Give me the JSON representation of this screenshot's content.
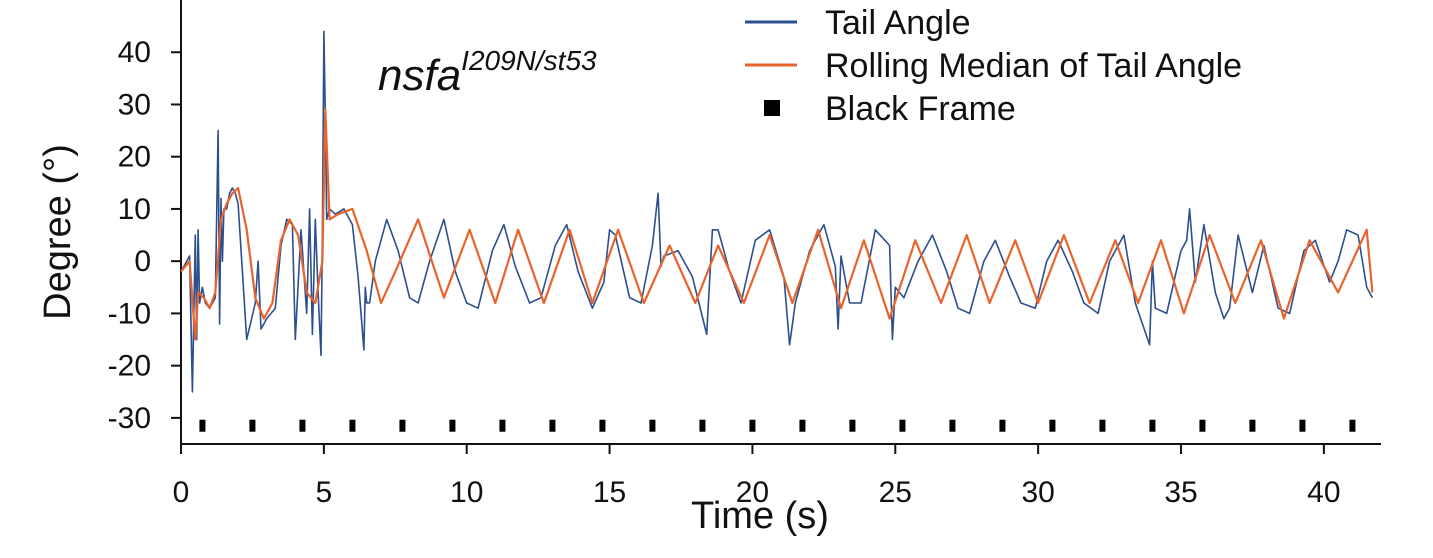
{
  "chart_data": {
    "type": "line",
    "title": "",
    "xlabel": "Time (s)",
    "ylabel": "Degree (°)",
    "xlim": [
      0,
      42
    ],
    "ylim": [
      -35,
      50
    ],
    "xticks": [
      0,
      5,
      10,
      15,
      20,
      25,
      30,
      35,
      40
    ],
    "yticks": [
      -30,
      -20,
      -10,
      0,
      10,
      20,
      30,
      40
    ],
    "grid": false,
    "legend_position": "top-right",
    "annotation": {
      "base": "nsfa",
      "superscript": "I209N/st53"
    },
    "colors": {
      "tail_angle": "#2c4f8f",
      "rolling_median": "#e8642c",
      "black_frame": "#000000"
    },
    "series": [
      {
        "name": "Tail Angle",
        "x": [
          0,
          0.2,
          0.3,
          0.4,
          0.5,
          0.55,
          0.6,
          0.65,
          0.75,
          0.85,
          1.0,
          1.2,
          1.3,
          1.35,
          1.4,
          1.45,
          1.5,
          1.6,
          1.7,
          1.8,
          1.9,
          2.0,
          2.3,
          2.6,
          2.7,
          2.8,
          3.0,
          3.3,
          3.5,
          3.7,
          3.9,
          4.0,
          4.2,
          4.4,
          4.5,
          4.6,
          4.7,
          4.8,
          4.9,
          4.95,
          5.0,
          5.05,
          5.1,
          5.2,
          5.4,
          5.7,
          6.0,
          6.2,
          6.4,
          6.45,
          6.5,
          6.6,
          6.8,
          7.2,
          7.6,
          8.0,
          8.3,
          8.7,
          9.2,
          9.6,
          10.0,
          10.4,
          10.9,
          11.3,
          11.7,
          12.2,
          12.6,
          13.1,
          13.5,
          13.9,
          14.4,
          14.8,
          15.0,
          15.2,
          15.7,
          16.1,
          16.5,
          16.7,
          16.8,
          16.9,
          17.4,
          17.9,
          18.4,
          18.6,
          18.8,
          19.2,
          19.6,
          20.1,
          20.6,
          21.1,
          21.3,
          21.5,
          22.0,
          22.5,
          22.9,
          23.0,
          23.1,
          23.4,
          23.8,
          24.3,
          24.8,
          24.9,
          25.0,
          25.3,
          25.8,
          26.3,
          26.8,
          27.2,
          27.6,
          28.1,
          28.5,
          29.0,
          29.4,
          29.9,
          30.3,
          30.7,
          31.2,
          31.6,
          32.1,
          32.5,
          33.0,
          33.4,
          33.9,
          34.0,
          34.1,
          34.5,
          35.0,
          35.2,
          35.3,
          35.5,
          35.8,
          36.2,
          36.5,
          36.7,
          37.0,
          37.5,
          37.9,
          38.4,
          38.8,
          39.3,
          39.7,
          40.2,
          40.5,
          40.8,
          41.2,
          41.5,
          41.7
        ],
        "y": [
          -2,
          0,
          1,
          -25,
          5,
          -15,
          6,
          -8,
          -5,
          -8,
          -9,
          -7,
          25,
          -12,
          12,
          0,
          10,
          10,
          13,
          14,
          13,
          11,
          -15,
          -8,
          0,
          -13,
          -11,
          -9,
          3,
          8,
          7,
          -15,
          6,
          -10,
          10,
          -14,
          8,
          -6,
          -18,
          5,
          44,
          28,
          8,
          10,
          9,
          10,
          7,
          -3,
          -17,
          -5,
          -8,
          -8,
          0,
          8,
          2,
          -7,
          -8,
          0,
          8,
          -2,
          -8,
          -9,
          2,
          7,
          -1,
          -8,
          -7,
          3,
          7,
          -2,
          -9,
          -4,
          6,
          5,
          -7,
          -8,
          3,
          13,
          -1,
          1,
          2,
          -3,
          -14,
          6,
          6,
          -2,
          -8,
          4,
          6,
          -3,
          -16,
          -8,
          2,
          7,
          -1,
          -13,
          1,
          -8,
          -8,
          6,
          3,
          -15,
          -5,
          -7,
          0,
          5,
          -2,
          -9,
          -10,
          0,
          4,
          -3,
          -8,
          -9,
          0,
          4,
          -2,
          -8,
          -10,
          0,
          5,
          -8,
          -16,
          0,
          -9,
          -10,
          2,
          4,
          10,
          -4,
          7,
          -6,
          -11,
          -9,
          5,
          -6,
          3,
          -9,
          -10,
          2,
          4,
          -4,
          0,
          6,
          5,
          -5,
          -7
        ],
        "color": "#2c4f8f"
      },
      {
        "name": "Rolling Median of Tail Angle",
        "x": [
          0,
          0.3,
          0.5,
          0.6,
          0.8,
          1.0,
          1.2,
          1.4,
          1.6,
          1.8,
          2.0,
          2.3,
          2.6,
          2.9,
          3.2,
          3.5,
          3.8,
          4.1,
          4.4,
          4.7,
          4.95,
          5.05,
          5.2,
          5.5,
          6.0,
          6.5,
          7.0,
          7.5,
          8.3,
          9.2,
          10.1,
          11.0,
          11.8,
          12.7,
          13.6,
          14.4,
          15.3,
          16.2,
          17.1,
          18.0,
          18.8,
          19.7,
          20.6,
          21.4,
          22.3,
          23.1,
          23.9,
          24.8,
          25.7,
          26.6,
          27.5,
          28.3,
          29.2,
          30.0,
          30.9,
          31.8,
          32.7,
          33.5,
          34.3,
          35.1,
          36.0,
          36.9,
          37.8,
          38.6,
          39.5,
          40.5,
          41.5,
          41.7
        ],
        "y": [
          -2,
          0,
          -15,
          -6,
          -7,
          -9,
          -6,
          8,
          11,
          13,
          14,
          6,
          -7,
          -11,
          -8,
          4,
          8,
          5,
          -6,
          -8,
          0,
          29,
          8,
          9,
          10,
          2,
          -8,
          -2,
          8,
          -7,
          6,
          -8,
          6,
          -8,
          6,
          -8,
          6,
          -8,
          3,
          -8,
          3,
          -8,
          5,
          -8,
          6,
          -9,
          4,
          -11,
          4,
          -8,
          5,
          -8,
          4,
          -8,
          5,
          -8,
          4,
          -8,
          4,
          -10,
          5,
          -8,
          4,
          -11,
          4,
          -6,
          6,
          -6
        ],
        "color": "#e8642c"
      },
      {
        "name": "Black Frame",
        "type": "scatter",
        "marker": "square",
        "x": [
          0.75,
          2.5,
          4.25,
          6.0,
          7.75,
          9.5,
          11.25,
          13.0,
          14.75,
          16.5,
          18.25,
          20.0,
          21.75,
          23.5,
          25.25,
          27.0,
          28.75,
          30.5,
          32.25,
          34.0,
          35.75,
          37.5,
          39.25,
          41.0
        ],
        "y": [
          -31.5,
          -31.5,
          -31.5,
          -31.5,
          -31.5,
          -31.5,
          -31.5,
          -31.5,
          -31.5,
          -31.5,
          -31.5,
          -31.5,
          -31.5,
          -31.5,
          -31.5,
          -31.5,
          -31.5,
          -31.5,
          -31.5,
          -31.5,
          -31.5,
          -31.5,
          -31.5,
          -31.5
        ],
        "color": "#000000"
      }
    ]
  }
}
